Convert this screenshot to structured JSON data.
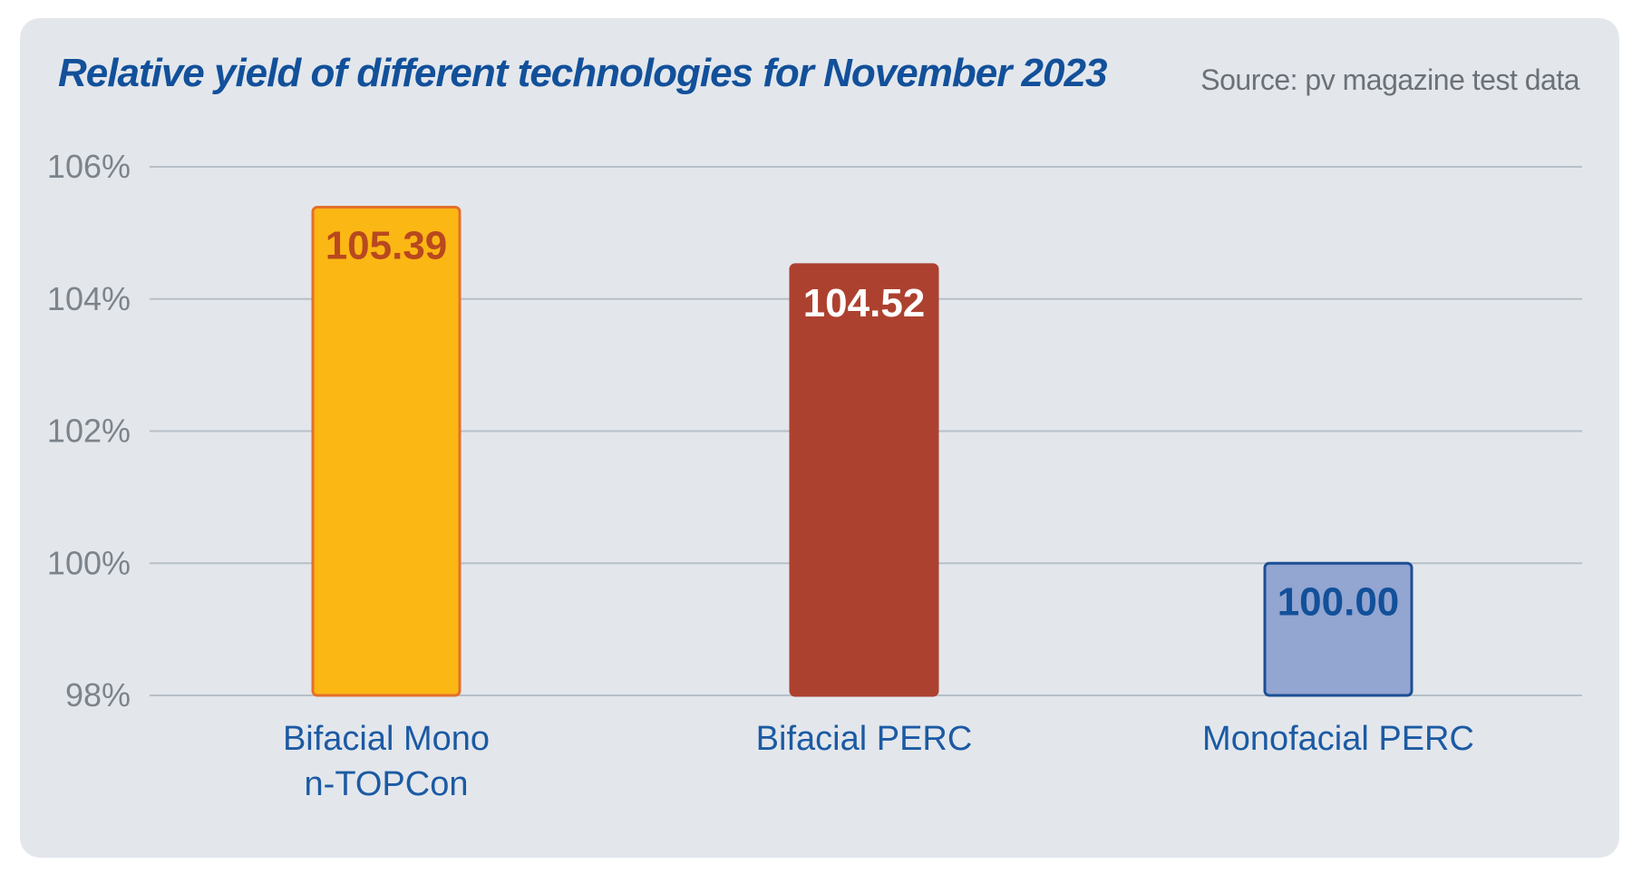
{
  "chart_data": {
    "type": "bar",
    "title": "Relative yield of different technologies for November 2023",
    "source": "Source: pv magazine test data",
    "categories": [
      [
        "Bifacial Mono",
        "n-TOPCon"
      ],
      [
        "Bifacial PERC"
      ],
      [
        "Monofacial PERC"
      ]
    ],
    "values": [
      105.39,
      104.52,
      100.0
    ],
    "value_labels": [
      "105.39",
      "104.52",
      "100.00"
    ],
    "ylim": [
      98,
      106
    ],
    "yticks": [
      98,
      100,
      102,
      104,
      106
    ],
    "ytick_labels": [
      "98%",
      "100%",
      "102%",
      "104%",
      "106%"
    ],
    "grid": true,
    "bar_colors": [
      "#fbb714",
      "#ad4130",
      "#93a5d1"
    ],
    "bar_stroke_colors": [
      "#e46f2b",
      "#ad4130",
      "#1c4f96"
    ],
    "label_colors": [
      "#b8481f",
      "#ffffff",
      "#12509a"
    ],
    "colors": {
      "background": "#e3e7ec",
      "title": "#12509a",
      "grid": "#b7bfc7",
      "axis_text": "#7c838b",
      "category_text": "#1c5aa3"
    }
  }
}
